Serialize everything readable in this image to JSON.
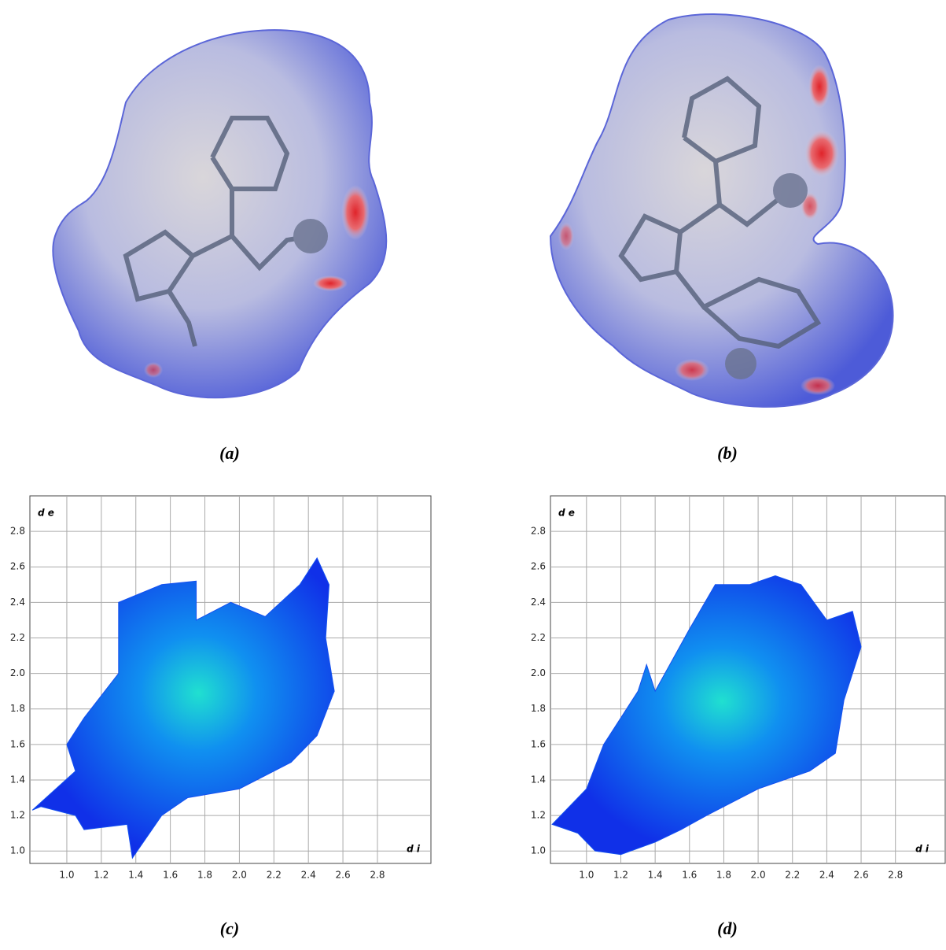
{
  "figure": {
    "panels": [
      {
        "caption": "(a)"
      },
      {
        "caption": "(b)"
      }
    ]
  },
  "chart_data": [
    {
      "type": "fingerprint",
      "caption": "(c)",
      "x_label": "d i",
      "y_label": "d e",
      "xlim": [
        0.786,
        3.11
      ],
      "ylim": [
        0.93,
        3.0
      ],
      "xticks": [
        {
          "value": 1,
          "label": "1.0"
        },
        1.2,
        1.4,
        1.6,
        1.8,
        {
          "value": 2,
          "label": "2.0"
        },
        2.2,
        2.4,
        2.6,
        2.8
      ],
      "yticks": [
        {
          "value": 1,
          "label": "1.0"
        },
        1.2,
        1.4,
        1.6,
        1.8,
        {
          "value": 2,
          "label": "2.0"
        },
        2.2,
        2.4,
        2.6,
        2.8
      ],
      "grid": true,
      "color": "#1450f0",
      "x": [
        0.8,
        1.05,
        1.0,
        1.1,
        1.3,
        1.3,
        1.55,
        1.75,
        1.75,
        1.95,
        2.15,
        2.35,
        2.45,
        2.52,
        2.5,
        2.55,
        2.45,
        2.3,
        2.0,
        1.7,
        1.55,
        1.38,
        1.35,
        1.1,
        1.05,
        0.85
      ],
      "values": [
        1.23,
        1.45,
        1.6,
        1.75,
        2.0,
        2.4,
        2.5,
        2.52,
        2.3,
        2.4,
        2.32,
        2.5,
        2.65,
        2.5,
        2.2,
        1.9,
        1.65,
        1.5,
        1.35,
        1.3,
        1.2,
        0.96,
        1.15,
        1.12,
        1.2,
        1.25
      ]
    },
    {
      "type": "fingerprint",
      "caption": "(d)",
      "x_label": "d i",
      "y_label": "d e",
      "xlim": [
        0.79,
        3.09
      ],
      "ylim": [
        0.93,
        3.0
      ],
      "xticks": [
        {
          "value": 1,
          "label": "1.0"
        },
        1.2,
        1.4,
        1.6,
        1.8,
        {
          "value": 2,
          "label": "2.0"
        },
        2.2,
        2.4,
        2.6,
        2.8
      ],
      "yticks": [
        {
          "value": 1,
          "label": "1.0"
        },
        1.2,
        1.4,
        1.6,
        1.8,
        {
          "value": 2,
          "label": "2.0"
        },
        2.2,
        2.4,
        2.6,
        2.8
      ],
      "grid": true,
      "color": "#1450f0",
      "x": [
        0.8,
        1.0,
        1.1,
        1.3,
        1.35,
        1.4,
        1.6,
        1.75,
        1.95,
        2.1,
        2.25,
        2.4,
        2.55,
        2.6,
        2.5,
        2.45,
        2.3,
        2.0,
        1.7,
        1.55,
        1.4,
        1.2,
        1.05,
        0.95
      ],
      "values": [
        1.15,
        1.35,
        1.6,
        1.9,
        2.05,
        1.9,
        2.25,
        2.5,
        2.5,
        2.55,
        2.5,
        2.3,
        2.35,
        2.15,
        1.85,
        1.55,
        1.45,
        1.35,
        1.2,
        1.12,
        1.05,
        0.98,
        1.0,
        1.1
      ]
    }
  ]
}
